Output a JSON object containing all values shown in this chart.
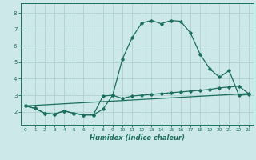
{
  "xlabel": "Humidex (Indice chaleur)",
  "background_color": "#cce8e8",
  "grid_color": "#aacccc",
  "line_color": "#1a6e5e",
  "xlim": [
    -0.5,
    23.5
  ],
  "ylim": [
    1.2,
    8.6
  ],
  "xticks": [
    0,
    1,
    2,
    3,
    4,
    5,
    6,
    7,
    8,
    9,
    10,
    11,
    12,
    13,
    14,
    15,
    16,
    17,
    18,
    19,
    20,
    21,
    22,
    23
  ],
  "yticks": [
    2,
    3,
    4,
    5,
    6,
    7,
    8
  ],
  "line1_x": [
    0,
    1,
    2,
    3,
    4,
    5,
    6,
    7,
    8,
    9,
    10,
    11,
    12,
    13,
    14,
    15,
    16,
    17,
    18,
    19,
    20,
    21,
    22,
    23
  ],
  "line1_y": [
    2.35,
    2.2,
    1.9,
    1.85,
    2.05,
    1.9,
    1.8,
    1.8,
    2.15,
    3.0,
    5.2,
    6.5,
    7.4,
    7.55,
    7.35,
    7.55,
    7.5,
    6.8,
    5.5,
    4.6,
    4.1,
    4.5,
    3.0,
    3.05
  ],
  "line2_x": [
    0,
    1,
    2,
    3,
    4,
    5,
    6,
    7,
    8,
    9,
    10,
    11,
    12,
    13,
    14,
    15,
    16,
    17,
    18,
    19,
    20,
    21,
    22,
    23
  ],
  "line2_y": [
    2.35,
    2.2,
    1.9,
    1.85,
    2.05,
    1.9,
    1.8,
    1.8,
    2.95,
    3.0,
    2.8,
    2.95,
    3.0,
    3.05,
    3.1,
    3.15,
    3.2,
    3.25,
    3.3,
    3.35,
    3.45,
    3.5,
    3.55,
    3.1
  ],
  "line3_x": [
    0,
    23
  ],
  "line3_y": [
    2.35,
    3.1
  ]
}
